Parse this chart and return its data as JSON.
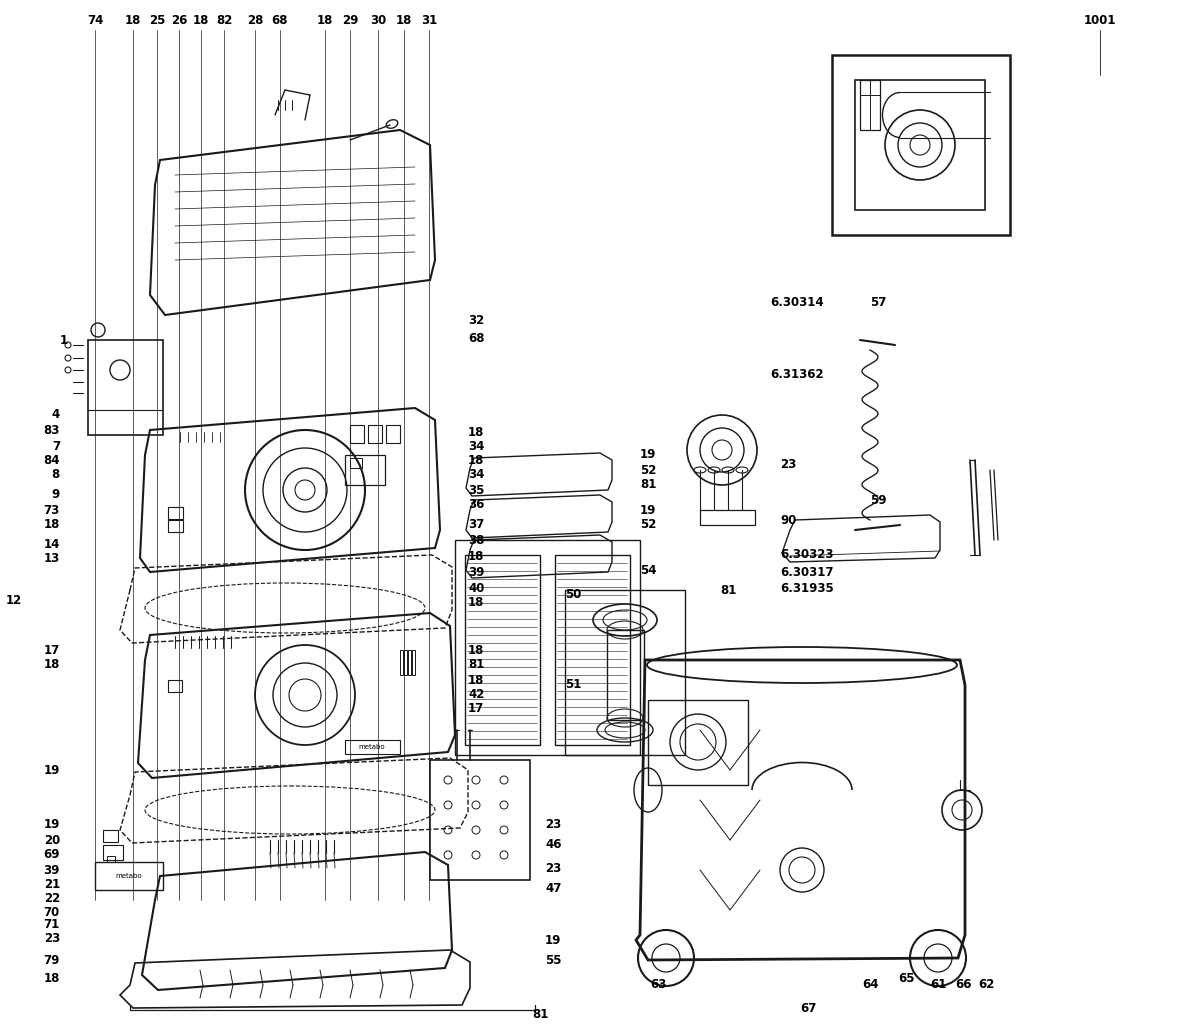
{
  "bg_color": "#f5f5f5",
  "line_color": "#1a1a1a",
  "text_color": "#000000",
  "fig_width": 11.98,
  "fig_height": 10.24
}
